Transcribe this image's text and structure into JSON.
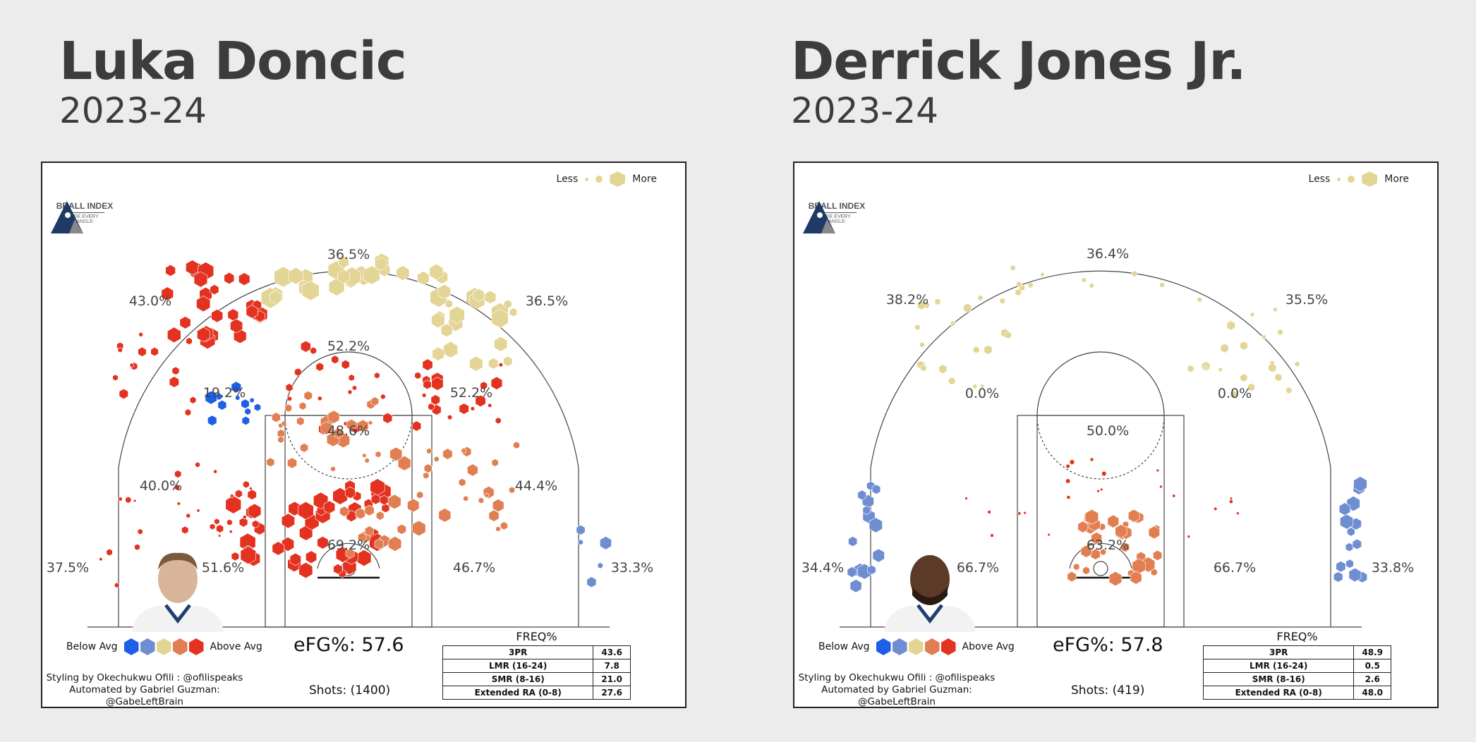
{
  "colors": {
    "below2": "#1f5ee6",
    "below1": "#6f8ed2",
    "avg": "#e3d596",
    "above1": "#e27f52",
    "above2": "#e43220",
    "court_line": "#444444",
    "panel_border": "#222222"
  },
  "left": {
    "title": "Luka Doncic",
    "season": "2023-24",
    "efg": "eFG%: 57.6",
    "shots": "Shots: (1400)"
  },
  "right": {
    "title": "Derrick Jones Jr.",
    "season": "2023-24",
    "efg": "eFG%: 57.8",
    "shots": "Shots: (419)"
  },
  "legend": {
    "less": "Less",
    "more": "More",
    "below": "Below Avg",
    "above": "Above Avg",
    "freq_title": "FREQ%"
  },
  "credits": {
    "line1": "Styling by Okechukwu Ofili : @ofilispeaks",
    "line2": "Automated by Gabriel Guzman: @GabeLeftBrain"
  },
  "logo": {
    "text": "BBALL INDEX",
    "sub": "SEE EVERY ANGLE"
  },
  "chart_data": [
    {
      "type": "heatmap",
      "subtype": "hexbin shot chart",
      "title": "Luka Doncic",
      "subtitle": "2023-24",
      "zones": [
        {
          "zone": "top 3",
          "fg_pct": "36.5%"
        },
        {
          "zone": "left wing 3",
          "fg_pct": "43.0%"
        },
        {
          "zone": "right wing 3",
          "fg_pct": "36.5%"
        },
        {
          "zone": "left corner 3",
          "fg_pct": "37.5%"
        },
        {
          "zone": "right corner 3",
          "fg_pct": "33.3%"
        },
        {
          "zone": "top long mid",
          "fg_pct": "52.2%"
        },
        {
          "zone": "left elbow",
          "fg_pct": "19.2%"
        },
        {
          "zone": "right elbow",
          "fg_pct": "52.2%"
        },
        {
          "zone": "left wing mid",
          "fg_pct": "40.0%"
        },
        {
          "zone": "right wing mid",
          "fg_pct": "44.4%"
        },
        {
          "zone": "left baseline mid",
          "fg_pct": "51.6%"
        },
        {
          "zone": "right baseline mid",
          "fg_pct": "46.7%"
        },
        {
          "zone": "paint",
          "fg_pct": "48.6%"
        },
        {
          "zone": "restricted area",
          "fg_pct": "69.2%"
        }
      ],
      "efg_pct": 57.6,
      "shots": 1400,
      "freq_table": [
        {
          "zone": "3PR",
          "freq": "43.6"
        },
        {
          "zone": "LMR (16-24)",
          "freq": "7.8"
        },
        {
          "zone": "SMR (8-16)",
          "freq": "21.0"
        },
        {
          "zone": "Extended RA (0-8)",
          "freq": "27.6"
        }
      ]
    },
    {
      "type": "heatmap",
      "subtype": "hexbin shot chart",
      "title": "Derrick Jones Jr.",
      "subtitle": "2023-24",
      "zones": [
        {
          "zone": "top 3",
          "fg_pct": "36.4%"
        },
        {
          "zone": "left wing 3",
          "fg_pct": "38.2%"
        },
        {
          "zone": "right wing 3",
          "fg_pct": "35.5%"
        },
        {
          "zone": "left corner 3",
          "fg_pct": "34.4%"
        },
        {
          "zone": "right corner 3",
          "fg_pct": "33.8%"
        },
        {
          "zone": "left elbow",
          "fg_pct": "0.0%"
        },
        {
          "zone": "right elbow",
          "fg_pct": "0.0%"
        },
        {
          "zone": "left baseline mid",
          "fg_pct": "66.7%"
        },
        {
          "zone": "right baseline mid",
          "fg_pct": "66.7%"
        },
        {
          "zone": "paint",
          "fg_pct": "50.0%"
        },
        {
          "zone": "restricted area",
          "fg_pct": "63.2%"
        }
      ],
      "efg_pct": 57.8,
      "shots": 419,
      "freq_table": [
        {
          "zone": "3PR",
          "freq": "48.9"
        },
        {
          "zone": "LMR (16-24)",
          "freq": "0.5"
        },
        {
          "zone": "SMR (8-16)",
          "freq": "2.6"
        },
        {
          "zone": "Extended RA (0-8)",
          "freq": "48.0"
        }
      ]
    }
  ]
}
